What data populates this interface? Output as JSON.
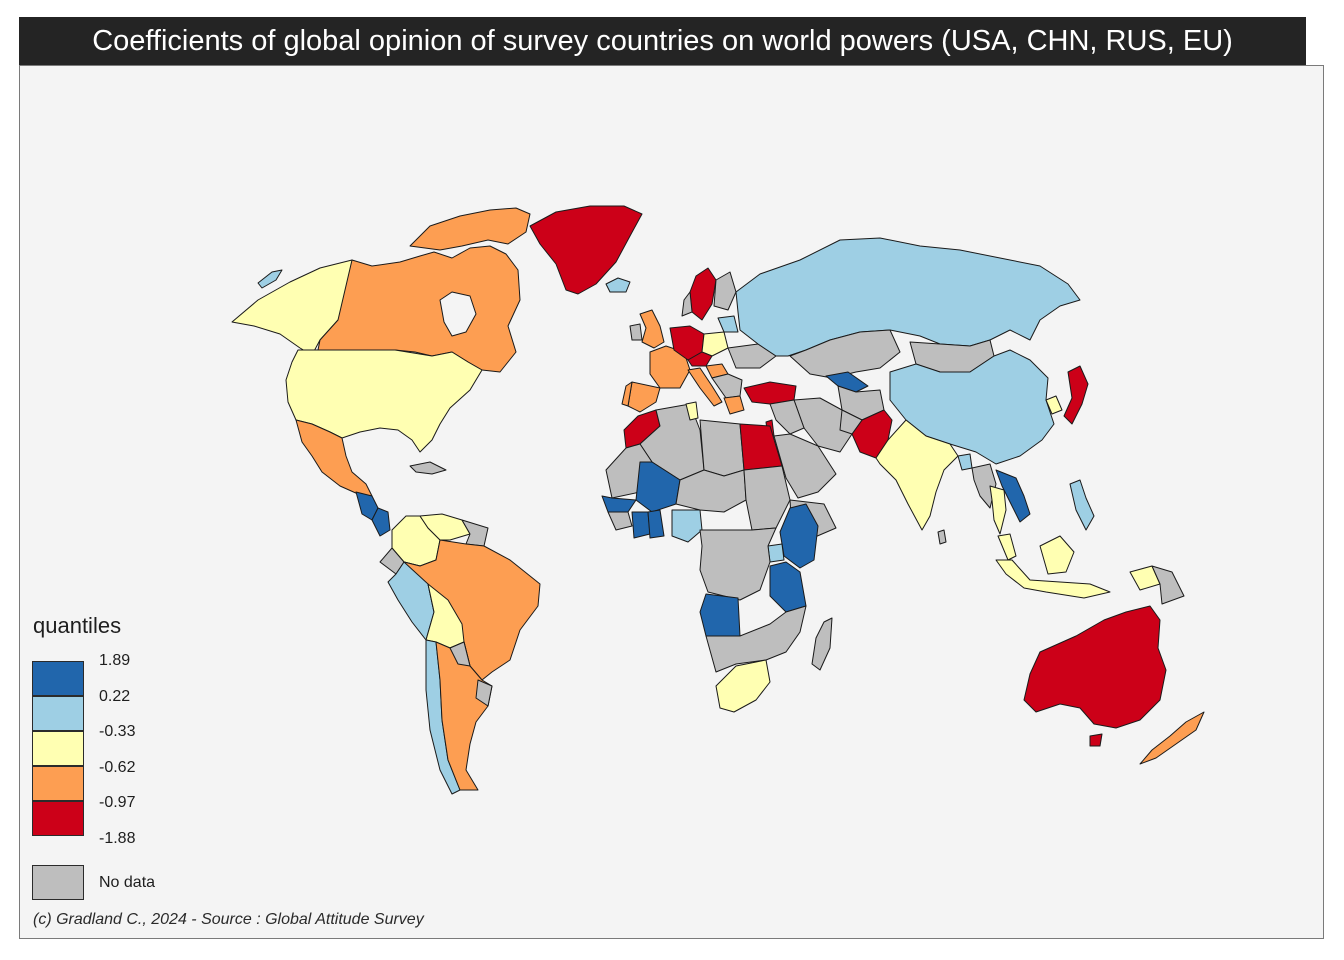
{
  "title": "Coefficients of global opinion of survey countries on world powers (USA, CHN, RUS, EU)",
  "legend": {
    "title": "quantiles",
    "breaks": [
      "1.89",
      "0.22",
      "-0.33",
      "-0.62",
      "-0.97",
      "-1.88"
    ],
    "classes": [
      {
        "color": "#2166ac"
      },
      {
        "color": "#9ecfe4"
      },
      {
        "color": "#ffffb2"
      },
      {
        "color": "#fd9e52"
      },
      {
        "color": "#cc0018"
      }
    ],
    "no_data": {
      "label": "No data",
      "color": "#bebebe"
    }
  },
  "credit": "(c) Gradland C., 2024 - Source : Global Attitude Survey",
  "colors": {
    "title_background": "#242424",
    "map_background": "#f4f4f4",
    "border": "#1a1a1a"
  },
  "map_data": {
    "class_1_dark_blue": [
      "Ghana",
      "Ivory Coast",
      "Mali",
      "Senegal",
      "Kenya",
      "Tanzania",
      "Angola",
      "Uzbekistan",
      "Vietnam",
      "Honduras",
      "Guatemala",
      "El Salvador",
      "Nicaragua"
    ],
    "class_2_light_blue": [
      "Russia",
      "China",
      "Nigeria",
      "Peru",
      "Chile",
      "Philippines",
      "Bangladesh",
      "Uganda",
      "Latvia",
      "Lithuania",
      "Iceland"
    ],
    "class_3_light_yellow": [
      "United States",
      "Alaska",
      "Colombia",
      "Venezuela",
      "Bolivia",
      "India",
      "Indonesia",
      "Thailand",
      "Malaysia",
      "Poland",
      "South Africa",
      "Tunisia",
      "South Korea",
      "Papua New Guinea"
    ],
    "class_4_orange": [
      "Canada",
      "Mexico",
      "Brazil",
      "Argentina",
      "France",
      "Spain",
      "Portugal",
      "United Kingdom",
      "Italy",
      "Greece",
      "Hungary",
      "New Zealand",
      "Belgium",
      "Netherlands"
    ],
    "class_5_red": [
      "Greenland",
      "Sweden",
      "Germany",
      "Turkey",
      "Egypt",
      "Pakistan",
      "Japan",
      "Australia",
      "Morocco",
      "Czechia",
      "Israel"
    ]
  }
}
